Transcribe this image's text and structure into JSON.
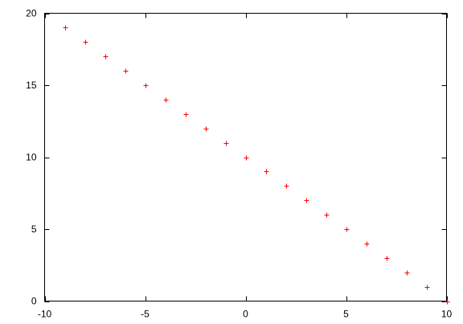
{
  "chart_data": {
    "type": "scatter",
    "title": "",
    "xlabel": "",
    "ylabel": "",
    "xlim": [
      -10,
      10
    ],
    "ylim": [
      0,
      20
    ],
    "grid": false,
    "legend": "none",
    "marker": "+",
    "x_ticks": [
      -10,
      -5,
      0,
      5,
      10
    ],
    "y_ticks": [
      0,
      5,
      10,
      15,
      20
    ],
    "x_tick_labels": [
      "-10",
      "-5",
      "0",
      "5",
      "10"
    ],
    "y_tick_labels": [
      "0",
      "5",
      "10",
      "15",
      "20"
    ],
    "series": [
      {
        "color": "#ff0000",
        "x": [
          -9,
          -8,
          -7,
          -6,
          -5,
          -4,
          -3,
          -2,
          -1,
          0,
          1,
          2,
          3,
          4,
          5,
          6,
          7,
          8,
          9,
          10
        ],
        "y": [
          19,
          18,
          17,
          16,
          15,
          14,
          13,
          12,
          11,
          10,
          9,
          8,
          7,
          6,
          5,
          4,
          3,
          2,
          1,
          0
        ]
      }
    ]
  }
}
